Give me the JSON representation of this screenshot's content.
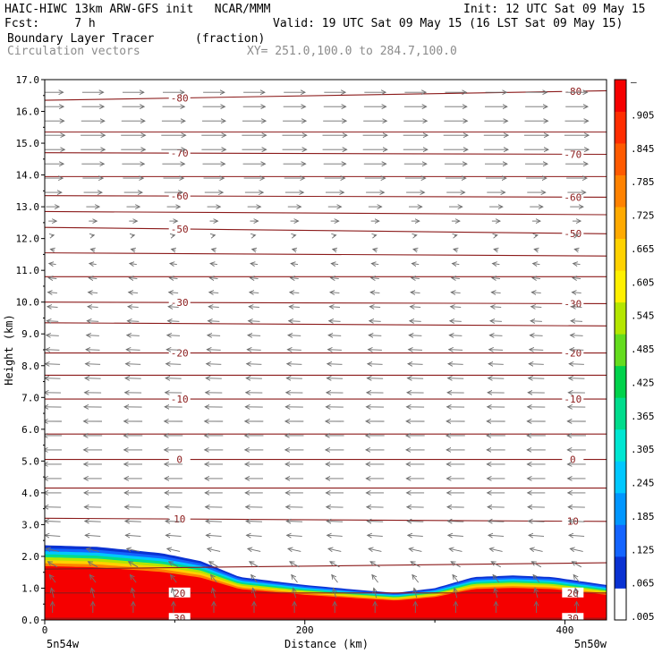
{
  "header": {
    "line1_left": "HAIC-HIWC 13km ARW-GFS init   NCAR/MMM",
    "line1_right": "Init: 12 UTC Sat 09 May 15",
    "line2_left": "Fcst:     7 h",
    "line2_right": "Valid: 19 UTC Sat 09 May 15 (16 LST Sat 09 May 15)",
    "field1_name": "Boundary Layer Tracer",
    "field1_units": "(fraction)",
    "field2_name": "Circulation vectors",
    "xy_range": "XY= 251.0,100.0 to 284.7,100.0"
  },
  "chart_data": {
    "type": "heatmap",
    "xlabel": "Distance (km)",
    "ylabel": "Height (km)",
    "xlim": [
      0,
      432
    ],
    "ylim": [
      0,
      17
    ],
    "x_ticks": [
      "0",
      "200",
      "400"
    ],
    "y_ticks": [
      "0.0",
      "1.0",
      "2.0",
      "3.0",
      "4.0",
      "5.0",
      "6.0",
      "7.0",
      "8.0",
      "9.0",
      "10.0",
      "11.0",
      "12.0",
      "13.0",
      "14.0",
      "15.0",
      "16.0",
      "17.0"
    ],
    "x_end_labels": {
      "left": "5n54w",
      "right": "5n50w"
    },
    "colorbar": {
      "labels": [
        "–",
        ".905",
        ".845",
        ".785",
        ".725",
        ".665",
        ".605",
        ".545",
        ".485",
        ".425",
        ".365",
        ".305",
        ".245",
        ".185",
        ".125",
        ".065",
        ".005"
      ],
      "colors": [
        "#ffffff",
        "#0a32d2",
        "#1464ff",
        "#0096ff",
        "#00c8ff",
        "#00e6d2",
        "#00dc8c",
        "#00d24b",
        "#64dc1e",
        "#b4e600",
        "#fff000",
        "#ffd200",
        "#ffaa00",
        "#ff8200",
        "#ff5a00",
        "#ff2d00",
        "#f50000"
      ]
    },
    "tracer_top_km": [
      [
        0,
        2.35
      ],
      [
        40,
        2.3
      ],
      [
        90,
        2.1
      ],
      [
        120,
        1.85
      ],
      [
        150,
        1.35
      ],
      [
        200,
        1.1
      ],
      [
        240,
        0.95
      ],
      [
        270,
        0.85
      ],
      [
        300,
        1.0
      ],
      [
        330,
        1.35
      ],
      [
        360,
        1.4
      ],
      [
        390,
        1.35
      ],
      [
        432,
        1.1
      ]
    ],
    "contours": {
      "field": "temperature (C)",
      "lines": [
        {
          "label": "30",
          "y": [
            0.05,
            0.05
          ]
        },
        {
          "label": "20",
          "y": [
            0.85,
            0.85
          ]
        },
        {
          "label": "",
          "y": [
            1.6,
            1.8
          ]
        },
        {
          "label": "10",
          "y": [
            3.2,
            3.1
          ]
        },
        {
          "label": "",
          "y": [
            4.15,
            4.15
          ]
        },
        {
          "label": "0",
          "y": [
            5.05,
            5.05
          ]
        },
        {
          "label": "",
          "y": [
            5.85,
            5.85
          ]
        },
        {
          "label": "-10",
          "y": [
            6.95,
            6.95
          ]
        },
        {
          "label": "",
          "y": [
            7.7,
            7.7
          ]
        },
        {
          "label": "-20",
          "y": [
            8.4,
            8.4
          ]
        },
        {
          "label": "",
          "y": [
            9.35,
            9.25
          ]
        },
        {
          "label": "-30",
          "y": [
            10.0,
            9.95
          ]
        },
        {
          "label": "",
          "y": [
            10.8,
            10.8
          ]
        },
        {
          "label": "",
          "y": [
            11.55,
            11.45
          ]
        },
        {
          "label": "-50",
          "y": [
            12.35,
            12.15
          ]
        },
        {
          "label": "",
          "y": [
            12.85,
            12.75
          ]
        },
        {
          "label": "-60",
          "y": [
            13.35,
            13.3
          ]
        },
        {
          "label": "",
          "y": [
            13.95,
            13.95
          ]
        },
        {
          "label": "-70",
          "y": [
            14.7,
            14.65
          ]
        },
        {
          "label": "",
          "y": [
            15.35,
            15.35
          ]
        },
        {
          "label": "-80",
          "y": [
            16.35,
            16.65
          ]
        }
      ]
    },
    "vectors": {
      "field": "circulation",
      "profile": [
        {
          "z": 0.5,
          "u": 0.0,
          "w": 1.0
        },
        {
          "z": 1.5,
          "u": -0.3,
          "w": 0.6
        },
        {
          "z": 2.5,
          "u": -0.6,
          "w": 0.1
        },
        {
          "z": 4.0,
          "u": -0.7,
          "w": 0.0
        },
        {
          "z": 6.0,
          "u": -0.75,
          "w": 0.0
        },
        {
          "z": 8.0,
          "u": -0.6,
          "w": 0.05
        },
        {
          "z": 10.0,
          "u": -0.4,
          "w": 0.05
        },
        {
          "z": 11.5,
          "u": -0.25,
          "w": 0.1
        },
        {
          "z": 12.5,
          "u": 0.3,
          "w": 0.0
        },
        {
          "z": 13.5,
          "u": 0.75,
          "w": 0.0
        },
        {
          "z": 15.0,
          "u": 1.0,
          "w": 0.0
        },
        {
          "z": 16.5,
          "u": 0.85,
          "w": 0.0
        }
      ]
    }
  }
}
